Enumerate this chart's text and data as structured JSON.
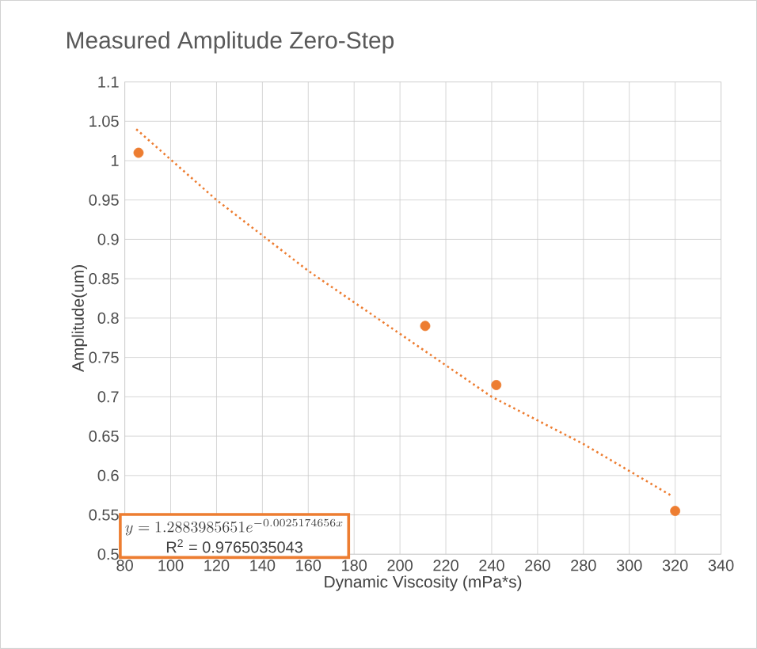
{
  "chart_data": {
    "type": "scatter",
    "title": "Measured Amplitude Zero-Step",
    "xlabel": "Dynamic Viscosity (mPa*s)",
    "ylabel": "Amplitude(um)",
    "xlim": [
      80,
      340
    ],
    "xticks": [
      80,
      100,
      120,
      140,
      160,
      180,
      200,
      220,
      240,
      260,
      280,
      300,
      320,
      340
    ],
    "ylim": [
      0.5,
      1.1
    ],
    "yticks": [
      0.5,
      0.55,
      0.6,
      0.65,
      0.7,
      0.75,
      0.8,
      0.85,
      0.9,
      0.95,
      1,
      1.05,
      1.1
    ],
    "grid": true,
    "series": [
      {
        "marker": "circle",
        "color": "#ed7d31",
        "x": [
          86,
          211,
          242,
          320
        ],
        "values": [
          1.01,
          0.79,
          0.715,
          0.555
        ]
      },
      {
        "type": "line",
        "marker": "none",
        "line_style": "dotted",
        "color": "#ed7d31",
        "x": [
          85,
          120,
          160,
          200,
          240,
          280,
          318
        ],
        "values": [
          1.04,
          0.95,
          0.86,
          0.78,
          0.7,
          0.64,
          0.575
        ]
      }
    ],
    "annotations": [
      "y = 1.2883985651e^{-0.0025174656x}",
      "R$^{2}$ = 0.9765035043"
    ]
  }
}
